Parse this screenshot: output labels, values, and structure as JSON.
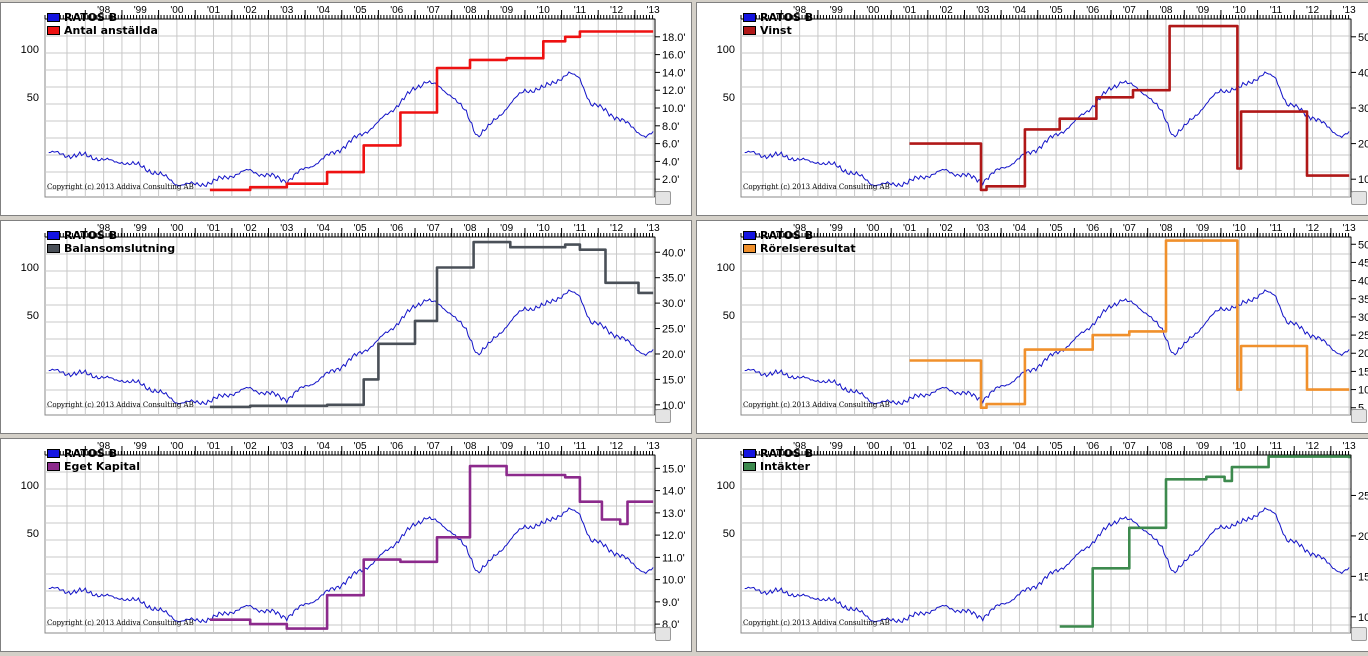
{
  "years": [
    "'98",
    "'99",
    "'00",
    "'01",
    "'02",
    "'03",
    "'04",
    "'05",
    "'06",
    "'07",
    "'08",
    "'09",
    "'10",
    "'11",
    "'12",
    "'13"
  ],
  "left_ticks": [
    "100",
    "50"
  ],
  "copyright": "Copyright (c) 2013 Addiva Consulting AB",
  "price_series": "RATOS B",
  "colors": {
    "price": "#1414c8",
    "price_legend": "#1414e0"
  },
  "chart_data": [
    {
      "type": "line",
      "title": "",
      "series_name": "Antal anställda",
      "color": "#ee1111",
      "right_ticks": [
        "18.0'",
        "16.0'",
        "14.0'",
        "12.0'",
        "10.0'",
        "8.0'",
        "6.0'",
        "4.0'",
        "2.0'"
      ],
      "right_range": [
        0,
        20000
      ],
      "steps": [
        [
          2001.4,
          800
        ],
        [
          2002.5,
          1100
        ],
        [
          2003.5,
          1500
        ],
        [
          2004.6,
          2800
        ],
        [
          2005.6,
          5800
        ],
        [
          2006.6,
          9500
        ],
        [
          2007.6,
          14500
        ],
        [
          2008.5,
          15400
        ],
        [
          2009.5,
          15600
        ],
        [
          2010.5,
          17500
        ],
        [
          2011.1,
          18000
        ],
        [
          2011.5,
          18600
        ],
        [
          2013.5,
          18600
        ]
      ]
    },
    {
      "type": "line",
      "title": "",
      "series_name": "Vinst",
      "color": "#b01818",
      "right_ticks": [
        "50",
        "40",
        "30",
        "20",
        "10"
      ],
      "right_range": [
        5,
        55
      ],
      "steps": [
        [
          2001.5,
          20
        ],
        [
          2003.4,
          20
        ],
        [
          2003.45,
          7
        ],
        [
          2003.6,
          8
        ],
        [
          2004.6,
          8
        ],
        [
          2004.65,
          24
        ],
        [
          2005.6,
          27
        ],
        [
          2006.6,
          33
        ],
        [
          2007.6,
          35
        ],
        [
          2008.6,
          53
        ],
        [
          2010.4,
          53
        ],
        [
          2010.45,
          13
        ],
        [
          2010.55,
          29
        ],
        [
          2012.3,
          29
        ],
        [
          2012.35,
          11
        ],
        [
          2013.5,
          11
        ]
      ]
    },
    {
      "type": "line",
      "title": "",
      "series_name": "Balansomslutning",
      "color": "#4a5058",
      "right_ticks": [
        "40.0'",
        "35.0'",
        "30.0'",
        "25.0'",
        "20.0'",
        "15.0'",
        "10.0'"
      ],
      "right_range": [
        8000,
        43000
      ],
      "steps": [
        [
          2001.4,
          9600
        ],
        [
          2002.5,
          9800
        ],
        [
          2004.6,
          10000
        ],
        [
          2005.6,
          15000
        ],
        [
          2006.0,
          22000
        ],
        [
          2007.0,
          26500
        ],
        [
          2007.6,
          37000
        ],
        [
          2008.6,
          42000
        ],
        [
          2009.6,
          41000
        ],
        [
          2011.1,
          41500
        ],
        [
          2011.5,
          40500
        ],
        [
          2012.2,
          34000
        ],
        [
          2013.1,
          32000
        ],
        [
          2013.5,
          32000
        ]
      ]
    },
    {
      "type": "line",
      "title": "",
      "series_name": "Rörelseresultat",
      "color": "#f0902c",
      "right_ticks": [
        "50",
        "45",
        "40",
        "35",
        "30",
        "25",
        "20",
        "15",
        "10",
        "5"
      ],
      "right_range": [
        3,
        52
      ],
      "steps": [
        [
          2001.5,
          18
        ],
        [
          2003.4,
          18
        ],
        [
          2003.45,
          5
        ],
        [
          2003.6,
          6
        ],
        [
          2004.6,
          6
        ],
        [
          2004.65,
          21
        ],
        [
          2005.6,
          21
        ],
        [
          2006.5,
          25
        ],
        [
          2007.5,
          26
        ],
        [
          2008.5,
          51
        ],
        [
          2010.4,
          51
        ],
        [
          2010.45,
          10
        ],
        [
          2010.55,
          22
        ],
        [
          2012.3,
          22
        ],
        [
          2012.35,
          10
        ],
        [
          2013.5,
          10
        ]
      ]
    },
    {
      "type": "line",
      "title": "",
      "series_name": "Eget Kapital",
      "color": "#8c2a8c",
      "right_ticks": [
        "15.0'",
        "14.0'",
        "13.0'",
        "12.0'",
        "11.0'",
        "10.0'",
        "9.0'",
        "8.0'"
      ],
      "right_range": [
        7600,
        15600
      ],
      "steps": [
        [
          2001.4,
          8200
        ],
        [
          2002.5,
          8000
        ],
        [
          2003.5,
          7800
        ],
        [
          2004.6,
          9300
        ],
        [
          2005.6,
          10900
        ],
        [
          2006.6,
          10800
        ],
        [
          2007.6,
          11900
        ],
        [
          2008.5,
          15100
        ],
        [
          2009.5,
          14700
        ],
        [
          2011.1,
          14600
        ],
        [
          2011.5,
          13500
        ],
        [
          2012.1,
          12700
        ],
        [
          2012.6,
          12500
        ],
        [
          2012.8,
          13500
        ],
        [
          2013.5,
          13500
        ]
      ]
    },
    {
      "type": "line",
      "title": "",
      "series_name": "Intäkter",
      "color": "#3d8a4e",
      "right_ticks": [
        "25",
        "20",
        "15",
        "10"
      ],
      "right_range": [
        8,
        30
      ],
      "steps": [
        [
          2005.6,
          8.8
        ],
        [
          2006.5,
          16
        ],
        [
          2007.5,
          21
        ],
        [
          2008.5,
          27
        ],
        [
          2009.6,
          27.3
        ],
        [
          2010.1,
          26.8
        ],
        [
          2010.3,
          28.5
        ],
        [
          2011.3,
          29.8
        ],
        [
          2013.5,
          29.6
        ]
      ]
    }
  ]
}
